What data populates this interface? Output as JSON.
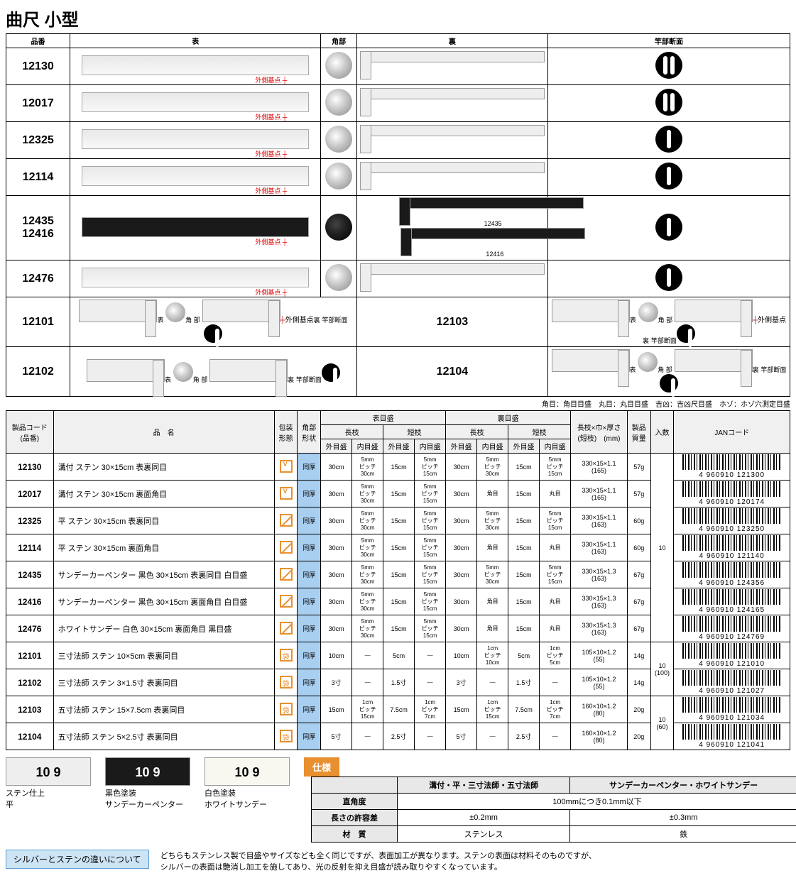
{
  "title": "曲尺 小型",
  "visual_headers": [
    "品番",
    "表",
    "角部",
    "裏",
    "竿部断面"
  ],
  "visual_rows": [
    {
      "code": "12130",
      "dark": false,
      "label": "外側基点"
    },
    {
      "code": "12017",
      "dark": false,
      "label": "外側基点"
    },
    {
      "code": "12325",
      "dark": false,
      "label": "外側基点"
    },
    {
      "code": "12114",
      "dark": false,
      "label": "外側基点"
    },
    {
      "code": "12435\n12416",
      "dark": true,
      "label": "外側基点",
      "back_labels": [
        "12435",
        "12416"
      ]
    },
    {
      "code": "12476",
      "dark": false,
      "label": "外側基点"
    }
  ],
  "split_rows": [
    {
      "left_code": "12101",
      "right_code": "12103",
      "labels": {
        "face": "表",
        "corner": "角 部",
        "back": "裏",
        "cross": "竿部断面",
        "base": "外側基点"
      }
    },
    {
      "left_code": "12102",
      "right_code": "12104",
      "labels": {
        "face": "表",
        "corner": "角 部",
        "back": "裏",
        "cross": "竿部断面"
      }
    }
  ],
  "legend": "角目：角目目盛　丸目：丸目目盛　吉凶：吉凶尺目盛　ホゾ：ホゾ穴測定目盛",
  "spec_headers": {
    "code": "製品コード\n(品番)",
    "name": "品　名",
    "pack": "包装\n形態",
    "corner": "角部\n形状",
    "front": "表目盛",
    "back": "裏目盛",
    "long": "長枝",
    "short": "短枝",
    "out": "外目盛",
    "in": "内目盛",
    "dims": "長枝×巾×厚さ\n(短枝)　(mm)",
    "mass": "製品\n質量",
    "qty": "入数",
    "jan": "JANコード"
  },
  "spec_rows": [
    {
      "code": "12130",
      "name": "溝付 ステン 30×15cm 表裏同目",
      "icon": "v",
      "corner": "同厚",
      "f_lo": "30cm",
      "f_li": "5mm\nピッチ\n30cm",
      "f_so": "15cm",
      "f_si": "5mm\nピッチ\n15cm",
      "b_lo": "30cm",
      "b_li": "5mm\nピッチ\n30cm",
      "b_so": "15cm",
      "b_si": "5mm\nピッチ\n15cm",
      "dims": "330×15×1.1\n(165)",
      "mass": "57g",
      "qty": "10",
      "jan": "4 960910 121300"
    },
    {
      "code": "12017",
      "name": "溝付 ステン 30×15cm 裏面角目",
      "icon": "v",
      "corner": "同厚",
      "f_lo": "30cm",
      "f_li": "5mm\nピッチ\n30cm",
      "f_so": "15cm",
      "f_si": "5mm\nピッチ\n15cm",
      "b_lo": "30cm",
      "b_li": "角目",
      "b_so": "15cm",
      "b_si": "丸目",
      "dims": "330×15×1.1\n(165)",
      "mass": "57g",
      "jan": "4 960910 120174"
    },
    {
      "code": "12325",
      "name": "平 ステン 30×15cm 表裏同目",
      "icon": "slash",
      "corner": "同厚",
      "f_lo": "30cm",
      "f_li": "5mm\nピッチ\n30cm",
      "f_so": "15cm",
      "f_si": "5mm\nピッチ\n15cm",
      "b_lo": "30cm",
      "b_li": "5mm\nピッチ\n30cm",
      "b_so": "15cm",
      "b_si": "5mm\nピッチ\n15cm",
      "dims": "330×15×1.1\n(163)",
      "mass": "60g",
      "jan": "4 960910 123250"
    },
    {
      "code": "12114",
      "name": "平 ステン 30×15cm 裏面角目",
      "icon": "slash",
      "corner": "同厚",
      "f_lo": "30cm",
      "f_li": "5mm\nピッチ\n30cm",
      "f_so": "15cm",
      "f_si": "5mm\nピッチ\n15cm",
      "b_lo": "30cm",
      "b_li": "角目",
      "b_so": "15cm",
      "b_si": "丸目",
      "dims": "330×15×1.1\n(163)",
      "mass": "60g",
      "jan": "4 960910 121140"
    },
    {
      "code": "12435",
      "name": "サンデーカーペンター 黒色 30×15cm 表裏同目 白目盛",
      "icon": "slash",
      "corner": "同厚",
      "f_lo": "30cm",
      "f_li": "5mm\nピッチ\n30cm",
      "f_so": "15cm",
      "f_si": "5mm\nピッチ\n15cm",
      "b_lo": "30cm",
      "b_li": "5mm\nピッチ\n30cm",
      "b_so": "15cm",
      "b_si": "5mm\nピッチ\n15cm",
      "dims": "330×15×1.3\n(163)",
      "mass": "67g",
      "jan": "4 960910 124356"
    },
    {
      "code": "12416",
      "name": "サンデーカーペンター 黒色 30×15cm 裏面角目 白目盛",
      "icon": "slash",
      "corner": "同厚",
      "f_lo": "30cm",
      "f_li": "5mm\nピッチ\n30cm",
      "f_so": "15cm",
      "f_si": "5mm\nピッチ\n15cm",
      "b_lo": "30cm",
      "b_li": "角目",
      "b_so": "15cm",
      "b_si": "丸目",
      "dims": "330×15×1.3\n(163)",
      "mass": "67g",
      "jan": "4 960910 124165"
    },
    {
      "code": "12476",
      "name": "ホワイトサンデー 白色 30×15cm 裏面角目 黒目盛",
      "icon": "slash",
      "corner": "同厚",
      "f_lo": "30cm",
      "f_li": "5mm\nピッチ\n30cm",
      "f_so": "15cm",
      "f_si": "5mm\nピッチ\n15cm",
      "b_lo": "30cm",
      "b_li": "角目",
      "b_so": "15cm",
      "b_si": "丸目",
      "dims": "330×15×1.3\n(163)",
      "mass": "67g",
      "jan": "4 960910 124769"
    },
    {
      "code": "12101",
      "name": "三寸法師 ステン 10×5cm 表裏同目",
      "icon": "bag",
      "corner": "同厚",
      "f_lo": "10cm",
      "f_li": "—",
      "f_so": "5cm",
      "f_si": "—",
      "b_lo": "10cm",
      "b_li": "1cm\nピッチ\n10cm",
      "b_so": "5cm",
      "b_si": "1cm\nピッチ\n5cm",
      "dims": "105×10×1.2\n(55)",
      "mass": "14g",
      "qty": "10\n(100)",
      "jan": "4 960910 121010"
    },
    {
      "code": "12102",
      "name": "三寸法師 ステン 3×1.5寸 表裏同目",
      "icon": "bag",
      "corner": "同厚",
      "f_lo": "3寸",
      "f_li": "—",
      "f_so": "1.5寸",
      "f_si": "—",
      "b_lo": "3寸",
      "b_li": "—",
      "b_so": "1.5寸",
      "b_si": "—",
      "dims": "105×10×1.2\n(55)",
      "mass": "14g",
      "jan": "4 960910 121027"
    },
    {
      "code": "12103",
      "name": "五寸法師 ステン 15×7.5cm 表裏同目",
      "icon": "bag",
      "corner": "同厚",
      "f_lo": "15cm",
      "f_li": "1cm\nピッチ\n15cm",
      "f_so": "7.5cm",
      "f_si": "1cm\nピッチ\n7cm",
      "b_lo": "15cm",
      "b_li": "1cm\nピッチ\n15cm",
      "b_so": "7.5cm",
      "b_si": "1cm\nピッチ\n7cm",
      "dims": "160×10×1.2\n(80)",
      "mass": "20g",
      "qty": "10\n(60)",
      "jan": "4 960910 121034"
    },
    {
      "code": "12104",
      "name": "五寸法師 ステン 5×2.5寸 表裏同目",
      "icon": "bag",
      "corner": "同厚",
      "f_lo": "5寸",
      "f_li": "—",
      "f_so": "2.5寸",
      "f_si": "—",
      "b_lo": "5寸",
      "b_li": "—",
      "b_so": "2.5寸",
      "b_si": "—",
      "dims": "160×10×1.2\n(80)",
      "mass": "20g",
      "jan": "4 960910 121041"
    }
  ],
  "finishes": [
    {
      "label": "ステン仕上\n平",
      "style": "plain",
      "num": "10"
    },
    {
      "label": "黒色塗装\nサンデーカーペンター",
      "style": "dark",
      "num": "10"
    },
    {
      "label": "白色塗装\nホワイトサンデー",
      "style": "white",
      "num": "10"
    }
  ],
  "spec_badge": "仕様",
  "spec_box": {
    "col1": "溝付・平・三寸法師・五寸法師",
    "col2": "サンデーカーペンター・ホワイトサンデー",
    "rows": [
      {
        "h": "直角度",
        "c1": "100mmにつき0.1mm以下",
        "c2": "",
        "span": true
      },
      {
        "h": "長さの許容差",
        "c1": "±0.2mm",
        "c2": "±0.3mm"
      },
      {
        "h": "材　質",
        "c1": "ステンレス",
        "c2": "鉄"
      }
    ]
  },
  "silver_title": "シルバーとステンの違いについて",
  "silver_note": "どちらもステンレス製で目盛やサイズなども全く同じですが、表面加工が異なります。ステンの表面は材料そのものですが、\nシルバーの表面は艶消し加工を施してあり、光の反射を抑え目盛が読み取りやすくなっています。"
}
